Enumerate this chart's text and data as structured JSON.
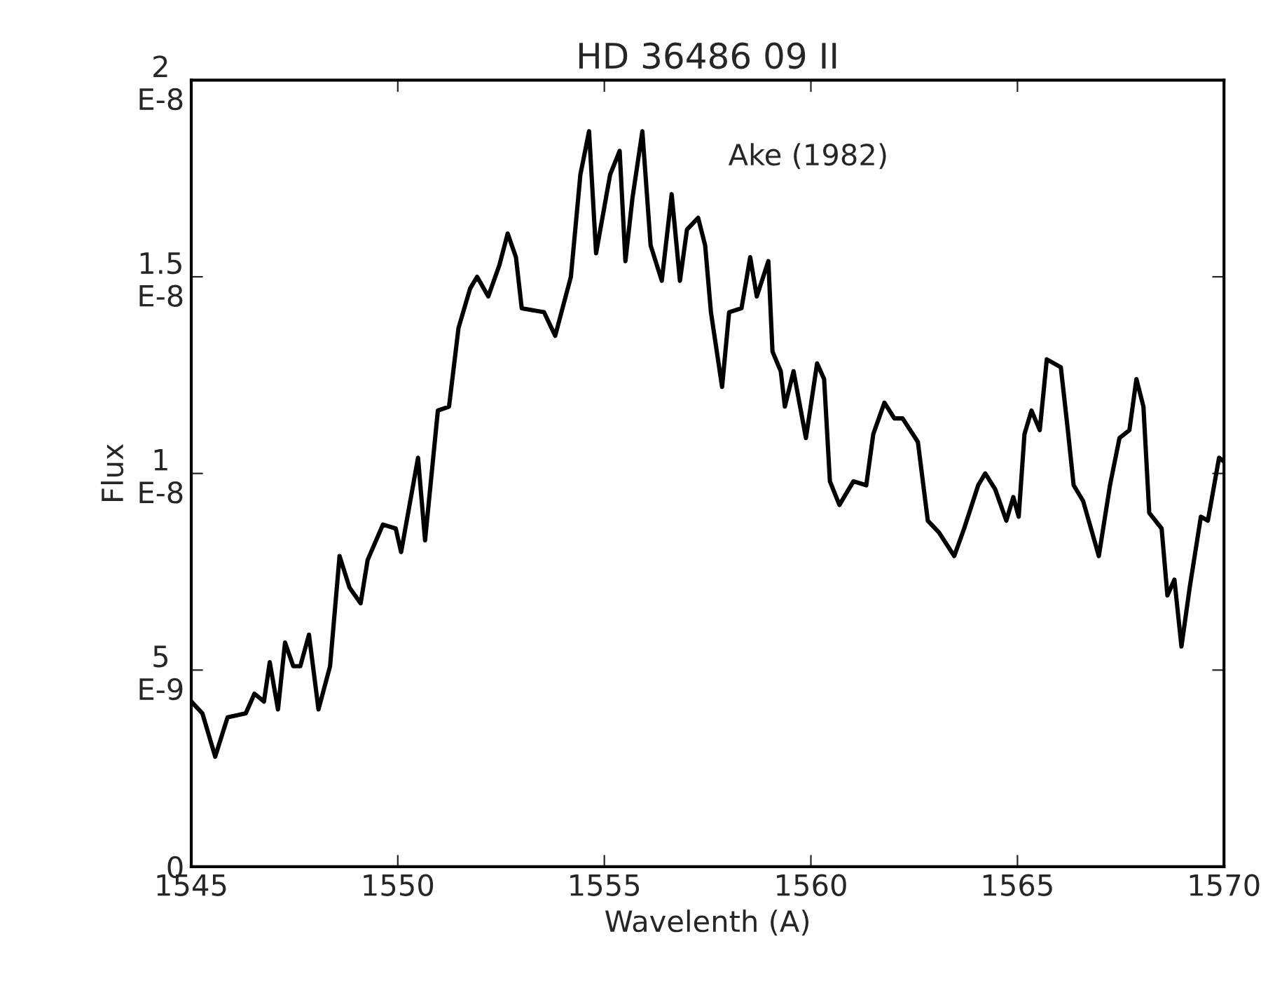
{
  "chart_data": {
    "type": "line",
    "title": "HD 36486 09 II",
    "xlabel": "Wavelenth (A)",
    "ylabel": "Flux",
    "annotations": [
      "Ake (1982)"
    ],
    "xlim": [
      1545,
      1570
    ],
    "xticks": [
      1545,
      1550,
      1555,
      1560,
      1565,
      1570
    ],
    "ylim": [
      0,
      2e-08
    ],
    "yticks": [
      {
        "value": 0,
        "label": "0"
      },
      {
        "value": 5e-09,
        "label": "5E-9"
      },
      {
        "value": 1e-08,
        "label": "1E-8"
      },
      {
        "value": 1.5e-08,
        "label": "1.5E-8"
      },
      {
        "value": 2e-08,
        "label": "2E-8"
      }
    ],
    "grid": false,
    "legend": false,
    "marker": "none",
    "line_style": "solid",
    "series": [
      {
        "color": "#000000",
        "x": [
          1545.0,
          1545.27,
          1545.58,
          1545.88,
          1546.32,
          1546.53,
          1546.76,
          1546.9,
          1547.1,
          1547.27,
          1547.47,
          1547.64,
          1547.85,
          1548.08,
          1548.36,
          1548.59,
          1548.83,
          1549.1,
          1549.27,
          1549.64,
          1549.95,
          1550.08,
          1550.49,
          1550.66,
          1550.97,
          1551.24,
          1551.47,
          1551.75,
          1551.92,
          1552.19,
          1552.46,
          1552.66,
          1552.86,
          1553.0,
          1553.54,
          1553.81,
          1554.19,
          1554.42,
          1554.63,
          1554.8,
          1555.14,
          1555.37,
          1555.51,
          1555.68,
          1555.92,
          1556.12,
          1556.39,
          1556.63,
          1556.83,
          1557.0,
          1557.27,
          1557.44,
          1557.58,
          1557.85,
          1558.02,
          1558.32,
          1558.53,
          1558.69,
          1558.97,
          1559.07,
          1559.27,
          1559.37,
          1559.58,
          1559.88,
          1560.15,
          1560.32,
          1560.46,
          1560.69,
          1561.03,
          1561.34,
          1561.51,
          1561.78,
          1562.02,
          1562.22,
          1562.59,
          1562.83,
          1563.1,
          1563.47,
          1563.71,
          1564.05,
          1564.22,
          1564.46,
          1564.73,
          1564.9,
          1565.03,
          1565.17,
          1565.34,
          1565.54,
          1565.71,
          1566.05,
          1566.22,
          1566.36,
          1566.59,
          1566.97,
          1567.24,
          1567.47,
          1567.71,
          1567.88,
          1568.05,
          1568.19,
          1568.49,
          1568.63,
          1568.8,
          1568.97,
          1569.17,
          1569.44,
          1569.61,
          1569.88,
          1570.0
        ],
        "values": [
          4.2e-09,
          3.9e-09,
          2.8e-09,
          3.8e-09,
          3.9e-09,
          4.4e-09,
          4.2e-09,
          5.2e-09,
          4e-09,
          5.7e-09,
          5.1e-09,
          5.1e-09,
          5.9e-09,
          4e-09,
          5.1e-09,
          7.9e-09,
          7.1e-09,
          6.7e-09,
          7.8e-09,
          8.7e-09,
          8.6e-09,
          8e-09,
          1.04e-08,
          8.3e-09,
          1.16e-08,
          1.17e-08,
          1.37e-08,
          1.47e-08,
          1.5e-08,
          1.45e-08,
          1.53e-08,
          1.61e-08,
          1.55e-08,
          1.42e-08,
          1.41e-08,
          1.35e-08,
          1.5e-08,
          1.76e-08,
          1.87e-08,
          1.56e-08,
          1.76e-08,
          1.82e-08,
          1.54e-08,
          1.7e-08,
          1.87e-08,
          1.58e-08,
          1.49e-08,
          1.71e-08,
          1.49e-08,
          1.62e-08,
          1.65e-08,
          1.58e-08,
          1.41e-08,
          1.22e-08,
          1.41e-08,
          1.42e-08,
          1.55e-08,
          1.45e-08,
          1.54e-08,
          1.31e-08,
          1.26e-08,
          1.17e-08,
          1.26e-08,
          1.09e-08,
          1.28e-08,
          1.24e-08,
          9.8e-09,
          9.2e-09,
          9.8e-09,
          9.7e-09,
          1.1e-08,
          1.18e-08,
          1.14e-08,
          1.14e-08,
          1.08e-08,
          8.8e-09,
          8.5e-09,
          7.9e-09,
          8.6e-09,
          9.7e-09,
          1e-08,
          9.6e-09,
          8.8e-09,
          9.4e-09,
          8.9e-09,
          1.1e-08,
          1.16e-08,
          1.11e-08,
          1.29e-08,
          1.27e-08,
          1.11e-08,
          9.7e-09,
          9.3e-09,
          7.9e-09,
          9.7e-09,
          1.09e-08,
          1.11e-08,
          1.24e-08,
          1.17e-08,
          9e-09,
          8.6e-09,
          6.9e-09,
          7.3e-09,
          5.6e-09,
          7.1e-09,
          8.9e-09,
          8.8e-09,
          1.04e-08,
          1.03e-08
        ]
      }
    ]
  }
}
